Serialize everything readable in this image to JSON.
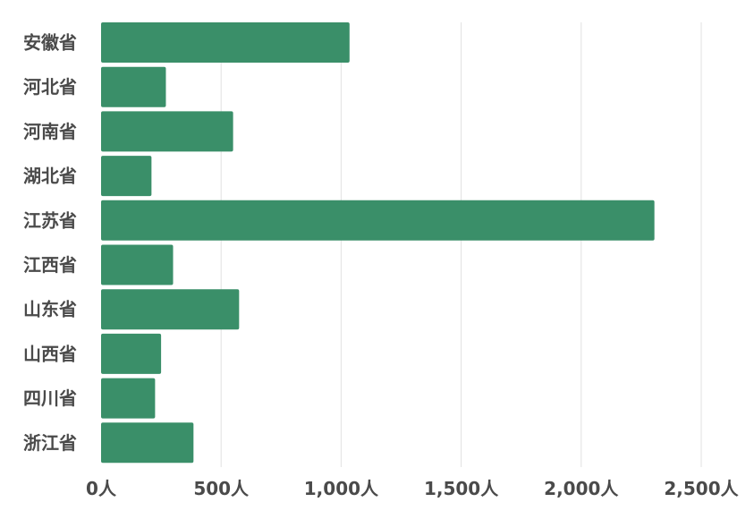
{
  "colors": {
    "bar": "#3a8f69",
    "grid": "#e2e2e2",
    "label": "#4a4a4a"
  },
  "chart_data": {
    "type": "bar",
    "orientation": "horizontal",
    "title": "",
    "xlabel": "",
    "ylabel": "",
    "categories": [
      "安徽省",
      "河北省",
      "河南省",
      "湖北省",
      "江苏省",
      "江西省",
      "山东省",
      "山西省",
      "四川省",
      "浙江省"
    ],
    "values": [
      1035,
      270,
      550,
      210,
      2305,
      300,
      575,
      250,
      225,
      385
    ],
    "xlim": [
      0,
      2500
    ],
    "tick_values": [
      0,
      500,
      1000,
      1500,
      2000,
      2500
    ],
    "tick_labels": [
      "0人",
      "500人",
      "1,000人",
      "1,500人",
      "2,000人",
      "2,500人"
    ],
    "grid": true,
    "legend": "none"
  }
}
